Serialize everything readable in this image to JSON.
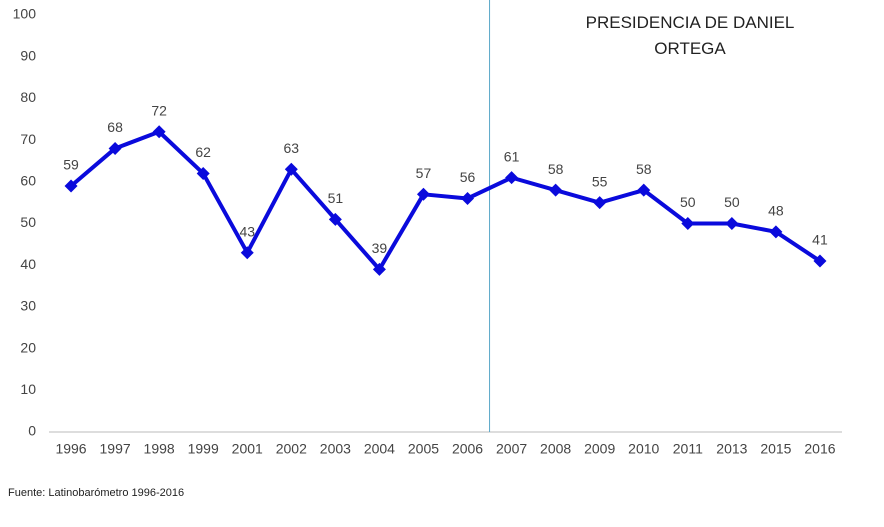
{
  "chart_data": {
    "type": "line",
    "annotation": "PRESIDENCIA DE DANIEL ORTEGA",
    "source": "Fuente: Latinobarómetro 1996-2016",
    "categories": [
      "1996",
      "1997",
      "1998",
      "1999",
      "2001",
      "2002",
      "2003",
      "2004",
      "2005",
      "2006",
      "2007",
      "2008",
      "2009",
      "2010",
      "2011",
      "2013",
      "2015",
      "2016"
    ],
    "series": [
      {
        "color": "#0a0adc",
        "values": [
          59,
          68,
          72,
          62,
          43,
          63,
          51,
          39,
          57,
          56,
          61,
          58,
          55,
          58,
          50,
          50,
          48,
          41
        ]
      }
    ],
    "ylim": [
      0,
      100
    ],
    "yticks": [
      0,
      10,
      20,
      30,
      40,
      50,
      60,
      70,
      80,
      90,
      100
    ]
  }
}
